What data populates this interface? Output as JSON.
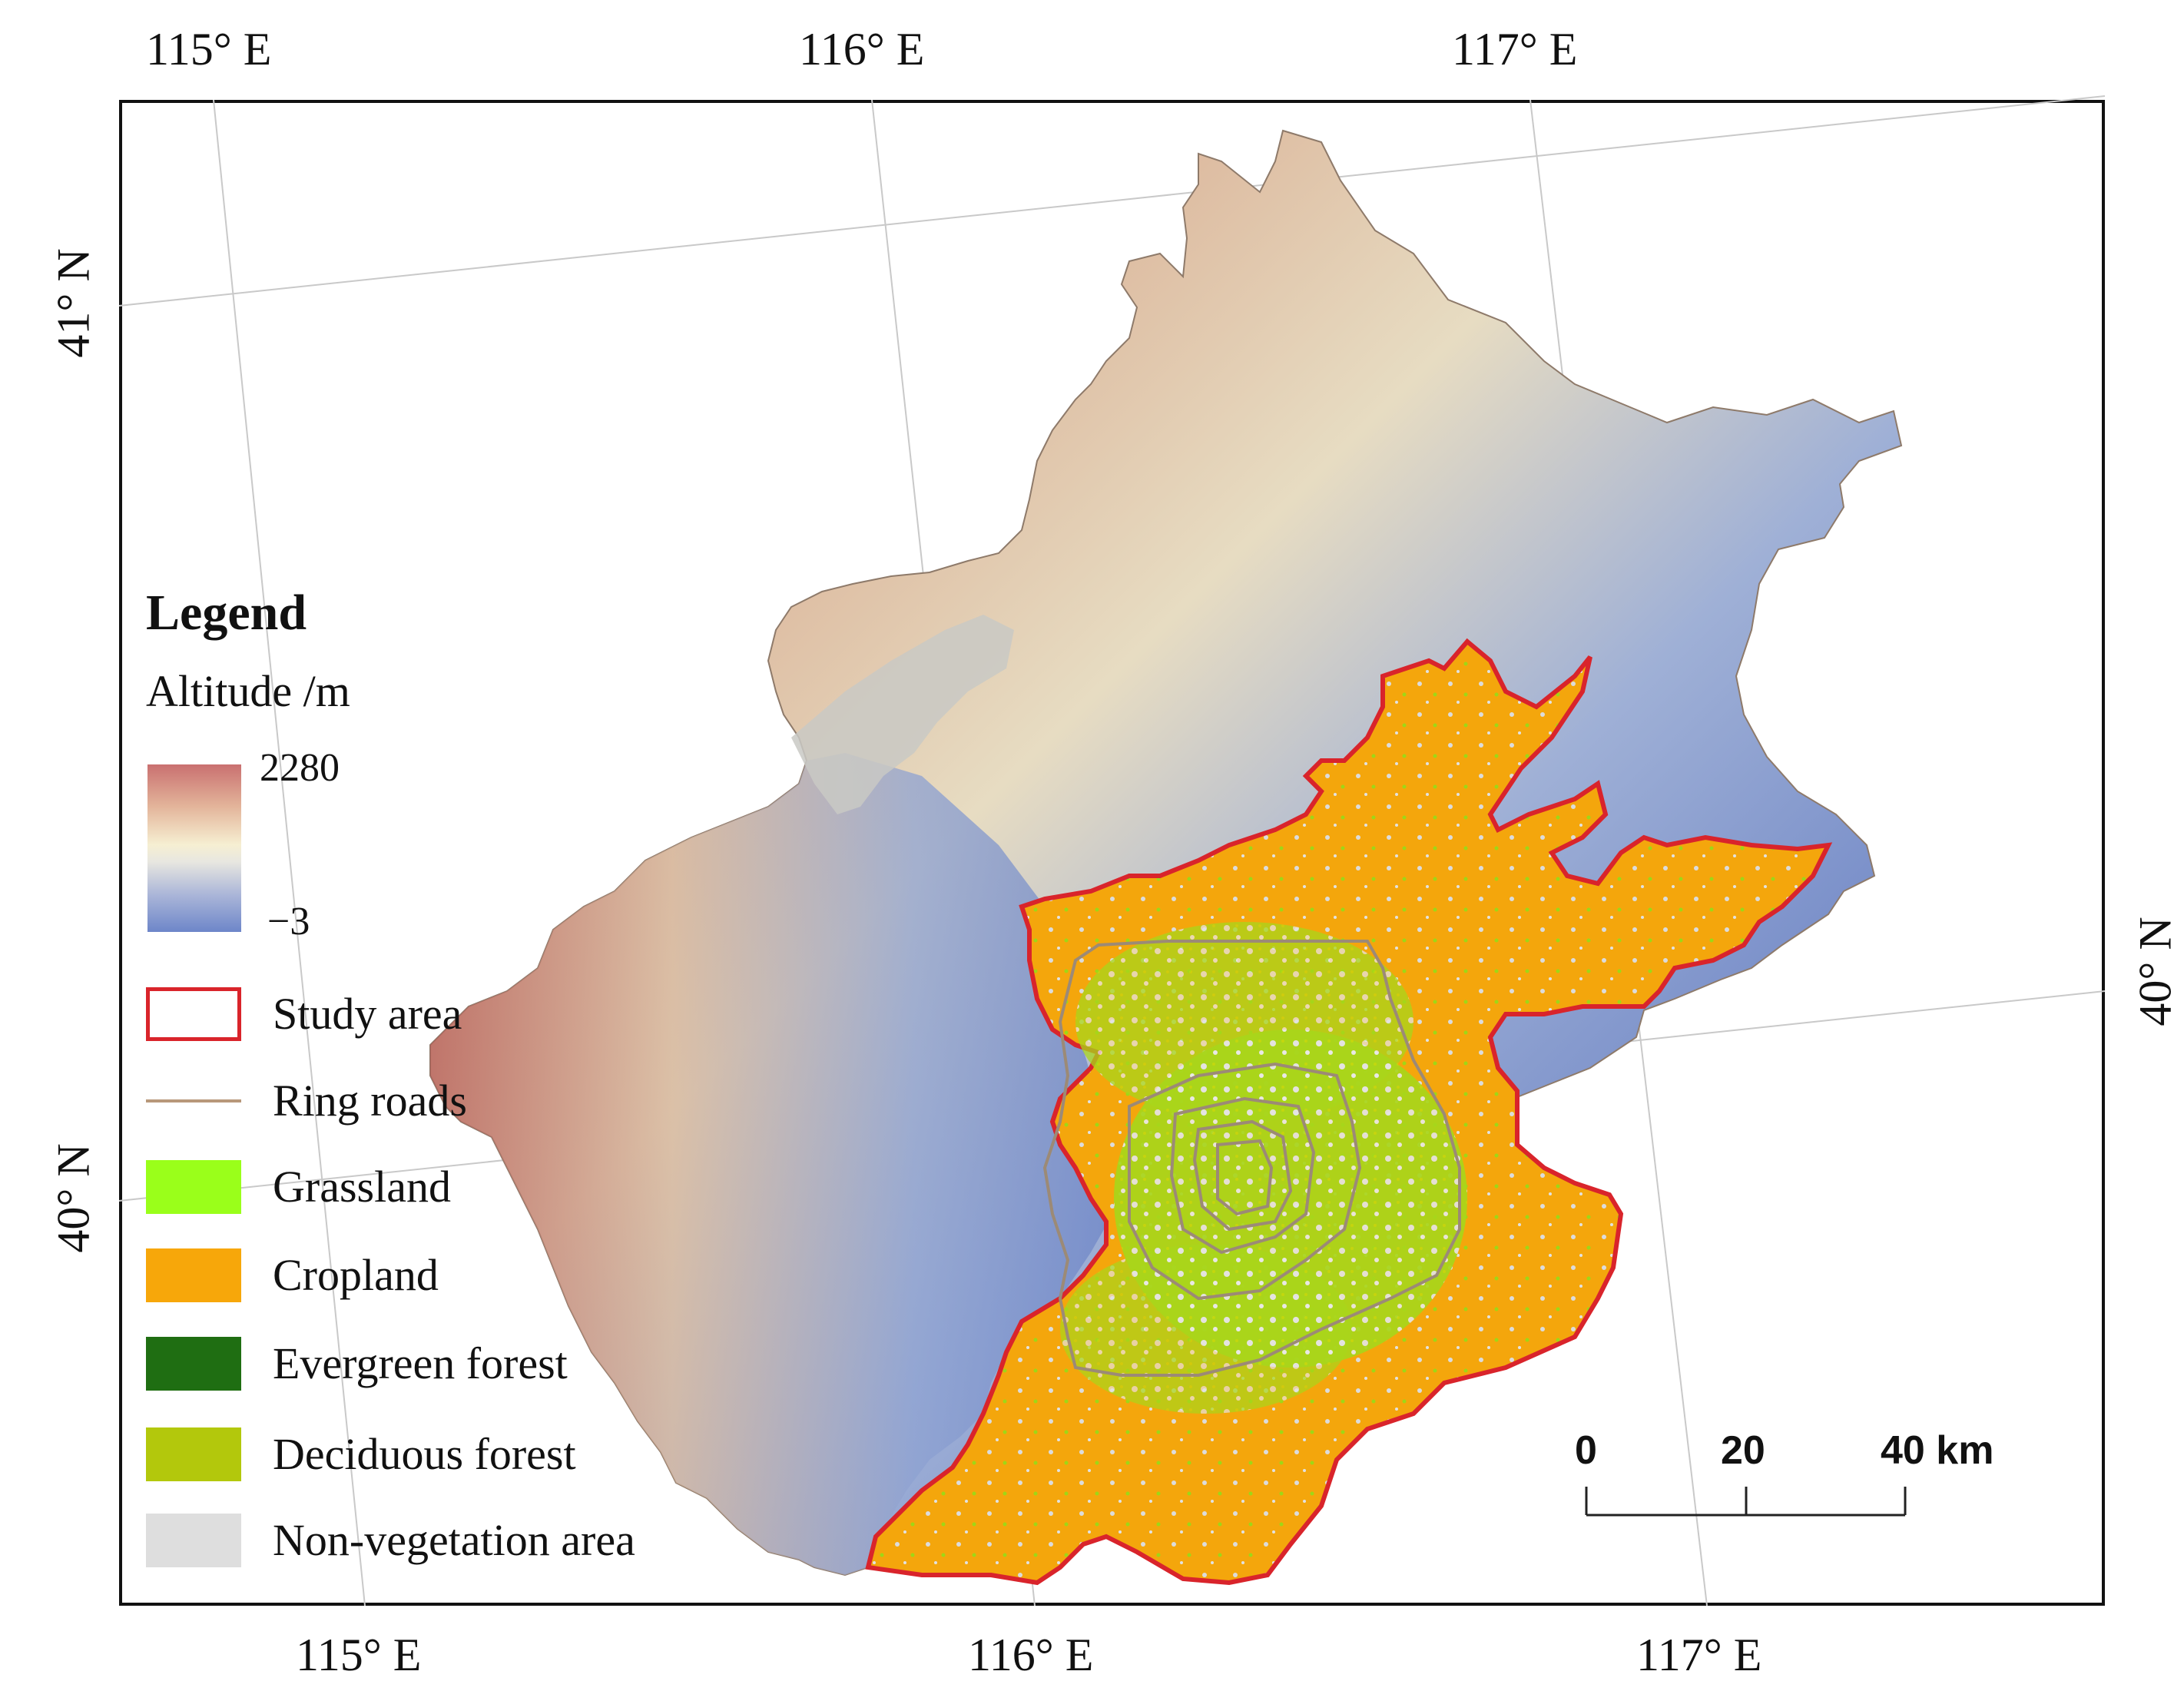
{
  "axes": {
    "top_lon_labels": [
      "115° E",
      "116° E",
      "117° E"
    ],
    "bottom_lon_labels": [
      "115° E",
      "116° E",
      "117° E"
    ],
    "left_lat_labels": [
      "41° N",
      "40° N"
    ],
    "right_lat_labels": [
      "40° N"
    ]
  },
  "legend": {
    "title": "Legend",
    "altitude_label": "Altitude /m",
    "altitude_max": "2280",
    "altitude_min": "−3",
    "items": [
      {
        "label": "Study area",
        "kind": "outline",
        "color": "#d9242b"
      },
      {
        "label": "Ring roads",
        "kind": "line",
        "color": "#b8987a"
      },
      {
        "label": "Grassland",
        "kind": "fill",
        "color": "#9aff1a"
      },
      {
        "label": "Cropland",
        "kind": "fill",
        "color": "#f7a70a"
      },
      {
        "label": "Evergreen forest",
        "kind": "fill",
        "color": "#1f6e12"
      },
      {
        "label": "Deciduous forest",
        "kind": "fill",
        "color": "#b3c80c"
      },
      {
        "label": "Non-vegetation area",
        "kind": "fill",
        "color": "#dedede"
      }
    ]
  },
  "scale_bar": {
    "labels": [
      "0",
      "20",
      "40 km"
    ]
  },
  "colors": {
    "study_area_outline": "#d9242b",
    "ring_roads": "#9c8a76",
    "altitude_high": "#c97070",
    "altitude_low": "#6d86c9"
  }
}
